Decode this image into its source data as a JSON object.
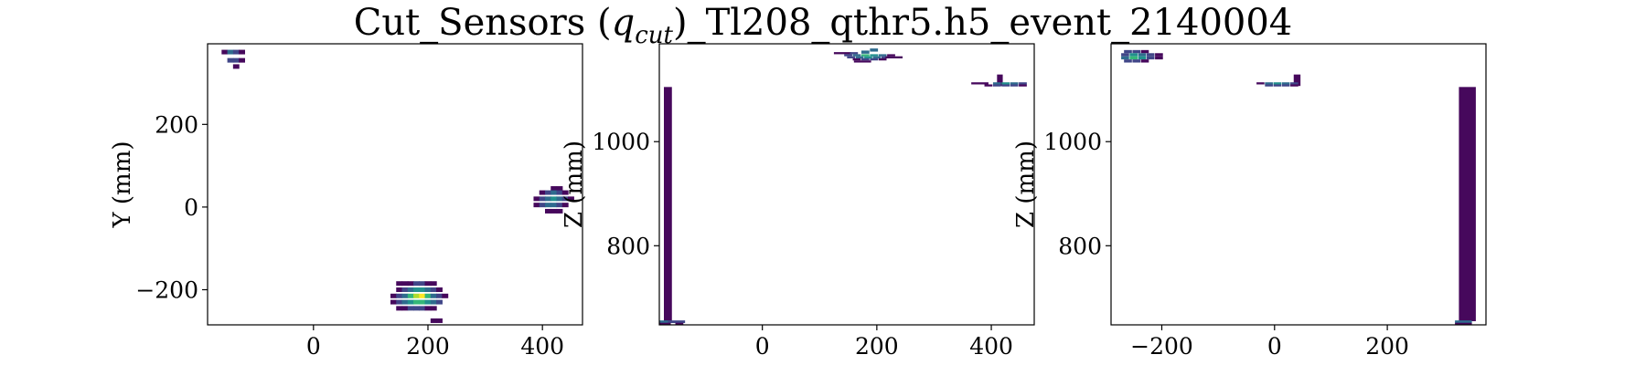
{
  "figure": {
    "title_prefix": "Cut_Sensors (",
    "title_q": "q",
    "title_sub": "cut",
    "title_suffix": ")_Tl208_qthr5.h5_event_2140004"
  },
  "colors": {
    "c1": "#46085c",
    "c2": "#404688",
    "c3": "#2f6b8e",
    "c4": "#22908d",
    "c5": "#35b779",
    "c6": "#addc30",
    "c7": "#fde725"
  },
  "chart_data": [
    {
      "type": "heatmap",
      "title": "",
      "xlabel": "",
      "ylabel": "Y (mm)",
      "xlim": [
        -185,
        470
      ],
      "ylim": [
        -285,
        395
      ],
      "xticks": [
        0,
        200,
        400
      ],
      "yticks": [
        -200,
        0,
        200
      ],
      "cells": [
        {
          "x": -155,
          "y": 375,
          "w": 11,
          "h": 11,
          "c": 1
        },
        {
          "x": -145,
          "y": 375,
          "w": 11,
          "h": 11,
          "c": 3
        },
        {
          "x": -135,
          "y": 375,
          "w": 11,
          "h": 11,
          "c": 2
        },
        {
          "x": -125,
          "y": 375,
          "w": 11,
          "h": 11,
          "c": 1
        },
        {
          "x": -145,
          "y": 355,
          "w": 11,
          "h": 11,
          "c": 2
        },
        {
          "x": -135,
          "y": 355,
          "w": 11,
          "h": 11,
          "c": 2
        },
        {
          "x": -125,
          "y": 355,
          "w": 11,
          "h": 11,
          "c": 1
        },
        {
          "x": -135,
          "y": 340,
          "w": 11,
          "h": 11,
          "c": 1
        },
        {
          "x": 420,
          "y": 45,
          "w": 11,
          "h": 11,
          "c": 1
        },
        {
          "x": 430,
          "y": 45,
          "w": 11,
          "h": 11,
          "c": 1
        },
        {
          "x": 400,
          "y": 35,
          "w": 11,
          "h": 11,
          "c": 1
        },
        {
          "x": 410,
          "y": 35,
          "w": 11,
          "h": 11,
          "c": 2
        },
        {
          "x": 420,
          "y": 35,
          "w": 11,
          "h": 11,
          "c": 3
        },
        {
          "x": 430,
          "y": 35,
          "w": 11,
          "h": 11,
          "c": 2
        },
        {
          "x": 440,
          "y": 35,
          "w": 11,
          "h": 11,
          "c": 1
        },
        {
          "x": 390,
          "y": 20,
          "w": 11,
          "h": 11,
          "c": 1
        },
        {
          "x": 400,
          "y": 20,
          "w": 11,
          "h": 11,
          "c": 2
        },
        {
          "x": 410,
          "y": 20,
          "w": 11,
          "h": 11,
          "c": 3
        },
        {
          "x": 420,
          "y": 20,
          "w": 11,
          "h": 11,
          "c": 4
        },
        {
          "x": 430,
          "y": 20,
          "w": 11,
          "h": 11,
          "c": 3
        },
        {
          "x": 440,
          "y": 20,
          "w": 11,
          "h": 11,
          "c": 2
        },
        {
          "x": 450,
          "y": 20,
          "w": 11,
          "h": 11,
          "c": 1
        },
        {
          "x": 390,
          "y": 5,
          "w": 11,
          "h": 11,
          "c": 1
        },
        {
          "x": 400,
          "y": 5,
          "w": 11,
          "h": 11,
          "c": 2
        },
        {
          "x": 410,
          "y": 5,
          "w": 11,
          "h": 11,
          "c": 3
        },
        {
          "x": 420,
          "y": 5,
          "w": 11,
          "h": 11,
          "c": 3
        },
        {
          "x": 430,
          "y": 5,
          "w": 11,
          "h": 11,
          "c": 2
        },
        {
          "x": 440,
          "y": 5,
          "w": 11,
          "h": 11,
          "c": 1
        },
        {
          "x": 410,
          "y": -10,
          "w": 11,
          "h": 11,
          "c": 1
        },
        {
          "x": 420,
          "y": -10,
          "w": 11,
          "h": 11,
          "c": 1
        },
        {
          "x": 430,
          "y": -10,
          "w": 11,
          "h": 11,
          "c": 1
        },
        {
          "x": 150,
          "y": -185,
          "w": 11,
          "h": 11,
          "c": 1
        },
        {
          "x": 160,
          "y": -185,
          "w": 11,
          "h": 11,
          "c": 1
        },
        {
          "x": 170,
          "y": -185,
          "w": 11,
          "h": 11,
          "c": 1
        },
        {
          "x": 180,
          "y": -185,
          "w": 11,
          "h": 11,
          "c": 2
        },
        {
          "x": 190,
          "y": -185,
          "w": 11,
          "h": 11,
          "c": 2
        },
        {
          "x": 200,
          "y": -185,
          "w": 11,
          "h": 11,
          "c": 1
        },
        {
          "x": 210,
          "y": -185,
          "w": 11,
          "h": 11,
          "c": 1
        },
        {
          "x": 150,
          "y": -200,
          "w": 11,
          "h": 11,
          "c": 1
        },
        {
          "x": 160,
          "y": -200,
          "w": 11,
          "h": 11,
          "c": 2
        },
        {
          "x": 170,
          "y": -200,
          "w": 11,
          "h": 11,
          "c": 3
        },
        {
          "x": 180,
          "y": -200,
          "w": 11,
          "h": 11,
          "c": 4
        },
        {
          "x": 190,
          "y": -200,
          "w": 11,
          "h": 11,
          "c": 4
        },
        {
          "x": 200,
          "y": -200,
          "w": 11,
          "h": 11,
          "c": 3
        },
        {
          "x": 210,
          "y": -200,
          "w": 11,
          "h": 11,
          "c": 2
        },
        {
          "x": 220,
          "y": -200,
          "w": 11,
          "h": 11,
          "c": 1
        },
        {
          "x": 140,
          "y": -215,
          "w": 11,
          "h": 11,
          "c": 1
        },
        {
          "x": 150,
          "y": -215,
          "w": 11,
          "h": 11,
          "c": 2
        },
        {
          "x": 160,
          "y": -215,
          "w": 11,
          "h": 11,
          "c": 3
        },
        {
          "x": 170,
          "y": -215,
          "w": 11,
          "h": 11,
          "c": 5
        },
        {
          "x": 180,
          "y": -215,
          "w": 11,
          "h": 11,
          "c": 6
        },
        {
          "x": 190,
          "y": -215,
          "w": 11,
          "h": 11,
          "c": 7
        },
        {
          "x": 200,
          "y": -215,
          "w": 11,
          "h": 11,
          "c": 5
        },
        {
          "x": 210,
          "y": -215,
          "w": 11,
          "h": 11,
          "c": 3
        },
        {
          "x": 220,
          "y": -215,
          "w": 11,
          "h": 11,
          "c": 2
        },
        {
          "x": 230,
          "y": -215,
          "w": 11,
          "h": 11,
          "c": 1
        },
        {
          "x": 140,
          "y": -230,
          "w": 11,
          "h": 11,
          "c": 1
        },
        {
          "x": 150,
          "y": -230,
          "w": 11,
          "h": 11,
          "c": 2
        },
        {
          "x": 160,
          "y": -230,
          "w": 11,
          "h": 11,
          "c": 3
        },
        {
          "x": 170,
          "y": -230,
          "w": 11,
          "h": 11,
          "c": 4
        },
        {
          "x": 180,
          "y": -230,
          "w": 11,
          "h": 11,
          "c": 5
        },
        {
          "x": 190,
          "y": -230,
          "w": 11,
          "h": 11,
          "c": 5
        },
        {
          "x": 200,
          "y": -230,
          "w": 11,
          "h": 11,
          "c": 4
        },
        {
          "x": 210,
          "y": -230,
          "w": 11,
          "h": 11,
          "c": 3
        },
        {
          "x": 220,
          "y": -230,
          "w": 11,
          "h": 11,
          "c": 2
        },
        {
          "x": 150,
          "y": -245,
          "w": 11,
          "h": 11,
          "c": 1
        },
        {
          "x": 160,
          "y": -245,
          "w": 11,
          "h": 11,
          "c": 1
        },
        {
          "x": 170,
          "y": -245,
          "w": 11,
          "h": 11,
          "c": 2
        },
        {
          "x": 180,
          "y": -245,
          "w": 11,
          "h": 11,
          "c": 2
        },
        {
          "x": 190,
          "y": -245,
          "w": 11,
          "h": 11,
          "c": 2
        },
        {
          "x": 200,
          "y": -245,
          "w": 11,
          "h": 11,
          "c": 1
        },
        {
          "x": 210,
          "y": -245,
          "w": 11,
          "h": 11,
          "c": 1
        },
        {
          "x": 210,
          "y": -275,
          "w": 11,
          "h": 11,
          "c": 1
        },
        {
          "x": 220,
          "y": -275,
          "w": 11,
          "h": 11,
          "c": 1
        }
      ]
    },
    {
      "type": "heatmap",
      "title": "",
      "xlabel": "",
      "ylabel": "Z (mm)",
      "xlim": [
        -180,
        475
      ],
      "ylim": [
        648,
        1188
      ],
      "xticks": [
        0,
        200,
        400
      ],
      "yticks": [
        800,
        1000
      ],
      "cells": [
        {
          "x": -165,
          "y": 880,
          "w": 14,
          "h": 450,
          "c": 1
        },
        {
          "x": -175,
          "y": 654,
          "w": 30,
          "h": 5,
          "c": 3
        },
        {
          "x": -150,
          "y": 654,
          "w": 30,
          "h": 5,
          "c": 2
        },
        {
          "x": -175,
          "y": 650,
          "w": 30,
          "h": 4,
          "c": 1
        },
        {
          "x": -145,
          "y": 650,
          "w": 14,
          "h": 4,
          "c": 1
        },
        {
          "x": 140,
          "y": 1170,
          "w": 30,
          "h": 4,
          "c": 1
        },
        {
          "x": 160,
          "y": 1170,
          "w": 14,
          "h": 4,
          "c": 2
        },
        {
          "x": 180,
          "y": 1172,
          "w": 14,
          "h": 6,
          "c": 3
        },
        {
          "x": 195,
          "y": 1176,
          "w": 14,
          "h": 6,
          "c": 3
        },
        {
          "x": 150,
          "y": 1166,
          "w": 14,
          "h": 4,
          "c": 2
        },
        {
          "x": 165,
          "y": 1166,
          "w": 14,
          "h": 4,
          "c": 3
        },
        {
          "x": 180,
          "y": 1166,
          "w": 14,
          "h": 4,
          "c": 5
        },
        {
          "x": 195,
          "y": 1166,
          "w": 14,
          "h": 4,
          "c": 4
        },
        {
          "x": 210,
          "y": 1166,
          "w": 14,
          "h": 4,
          "c": 3
        },
        {
          "x": 225,
          "y": 1166,
          "w": 14,
          "h": 4,
          "c": 1
        },
        {
          "x": 155,
          "y": 1162,
          "w": 14,
          "h": 4,
          "c": 2
        },
        {
          "x": 170,
          "y": 1162,
          "w": 14,
          "h": 4,
          "c": 3
        },
        {
          "x": 185,
          "y": 1162,
          "w": 14,
          "h": 4,
          "c": 4
        },
        {
          "x": 200,
          "y": 1162,
          "w": 14,
          "h": 4,
          "c": 3
        },
        {
          "x": 215,
          "y": 1162,
          "w": 14,
          "h": 4,
          "c": 2
        },
        {
          "x": 230,
          "y": 1162,
          "w": 30,
          "h": 4,
          "c": 1
        },
        {
          "x": 165,
          "y": 1158,
          "w": 14,
          "h": 4,
          "c": 1
        },
        {
          "x": 180,
          "y": 1158,
          "w": 14,
          "h": 4,
          "c": 2
        },
        {
          "x": 195,
          "y": 1158,
          "w": 14,
          "h": 4,
          "c": 2
        },
        {
          "x": 210,
          "y": 1158,
          "w": 14,
          "h": 4,
          "c": 1
        },
        {
          "x": 175,
          "y": 1154,
          "w": 30,
          "h": 4,
          "c": 1
        },
        {
          "x": 415,
          "y": 1118,
          "w": 10,
          "h": 22,
          "c": 1
        },
        {
          "x": 380,
          "y": 1112,
          "w": 30,
          "h": 4,
          "c": 1
        },
        {
          "x": 410,
          "y": 1112,
          "w": 14,
          "h": 4,
          "c": 3
        },
        {
          "x": 425,
          "y": 1112,
          "w": 14,
          "h": 4,
          "c": 4
        },
        {
          "x": 440,
          "y": 1112,
          "w": 14,
          "h": 4,
          "c": 3
        },
        {
          "x": 455,
          "y": 1112,
          "w": 14,
          "h": 4,
          "c": 2
        },
        {
          "x": 395,
          "y": 1108,
          "w": 14,
          "h": 4,
          "c": 1
        },
        {
          "x": 410,
          "y": 1108,
          "w": 14,
          "h": 4,
          "c": 2
        },
        {
          "x": 425,
          "y": 1108,
          "w": 14,
          "h": 4,
          "c": 2
        },
        {
          "x": 440,
          "y": 1108,
          "w": 14,
          "h": 4,
          "c": 2
        },
        {
          "x": 455,
          "y": 1108,
          "w": 14,
          "h": 4,
          "c": 1
        }
      ]
    },
    {
      "type": "heatmap",
      "title": "",
      "xlabel": "",
      "ylabel": "Z (mm)",
      "xlim": [
        -290,
        375
      ],
      "ylim": [
        648,
        1188
      ],
      "xticks": [
        -200,
        0,
        200
      ],
      "yticks": [
        800,
        1000
      ],
      "cells": [
        {
          "x": -260,
          "y": 1173,
          "w": 14,
          "h": 6,
          "c": 2
        },
        {
          "x": -245,
          "y": 1173,
          "w": 14,
          "h": 6,
          "c": 2
        },
        {
          "x": -230,
          "y": 1173,
          "w": 14,
          "h": 6,
          "c": 1
        },
        {
          "x": -265,
          "y": 1167,
          "w": 14,
          "h": 6,
          "c": 2
        },
        {
          "x": -250,
          "y": 1167,
          "w": 14,
          "h": 6,
          "c": 4
        },
        {
          "x": -235,
          "y": 1167,
          "w": 14,
          "h": 6,
          "c": 3
        },
        {
          "x": -220,
          "y": 1167,
          "w": 14,
          "h": 6,
          "c": 2
        },
        {
          "x": -205,
          "y": 1167,
          "w": 14,
          "h": 6,
          "c": 1
        },
        {
          "x": -265,
          "y": 1161,
          "w": 14,
          "h": 6,
          "c": 3
        },
        {
          "x": -250,
          "y": 1161,
          "w": 14,
          "h": 6,
          "c": 5
        },
        {
          "x": -235,
          "y": 1161,
          "w": 14,
          "h": 6,
          "c": 4
        },
        {
          "x": -220,
          "y": 1161,
          "w": 14,
          "h": 6,
          "c": 2
        },
        {
          "x": -205,
          "y": 1161,
          "w": 14,
          "h": 6,
          "c": 1
        },
        {
          "x": -260,
          "y": 1155,
          "w": 14,
          "h": 6,
          "c": 2
        },
        {
          "x": -245,
          "y": 1155,
          "w": 14,
          "h": 6,
          "c": 2
        },
        {
          "x": -230,
          "y": 1155,
          "w": 14,
          "h": 6,
          "c": 1
        },
        {
          "x": 40,
          "y": 1118,
          "w": 12,
          "h": 22,
          "c": 1
        },
        {
          "x": -25,
          "y": 1112,
          "w": 14,
          "h": 4,
          "c": 1
        },
        {
          "x": -10,
          "y": 1112,
          "w": 14,
          "h": 4,
          "c": 3
        },
        {
          "x": 5,
          "y": 1112,
          "w": 14,
          "h": 4,
          "c": 4
        },
        {
          "x": 20,
          "y": 1112,
          "w": 14,
          "h": 4,
          "c": 3
        },
        {
          "x": 35,
          "y": 1112,
          "w": 14,
          "h": 4,
          "c": 2
        },
        {
          "x": -10,
          "y": 1108,
          "w": 14,
          "h": 4,
          "c": 2
        },
        {
          "x": 5,
          "y": 1108,
          "w": 14,
          "h": 4,
          "c": 2
        },
        {
          "x": 20,
          "y": 1108,
          "w": 14,
          "h": 4,
          "c": 2
        },
        {
          "x": 35,
          "y": 1108,
          "w": 14,
          "h": 4,
          "c": 1
        },
        {
          "x": 342,
          "y": 880,
          "w": 30,
          "h": 450,
          "c": 1
        },
        {
          "x": 335,
          "y": 654,
          "w": 30,
          "h": 5,
          "c": 3
        },
        {
          "x": 335,
          "y": 650,
          "w": 30,
          "h": 4,
          "c": 1
        }
      ]
    }
  ]
}
